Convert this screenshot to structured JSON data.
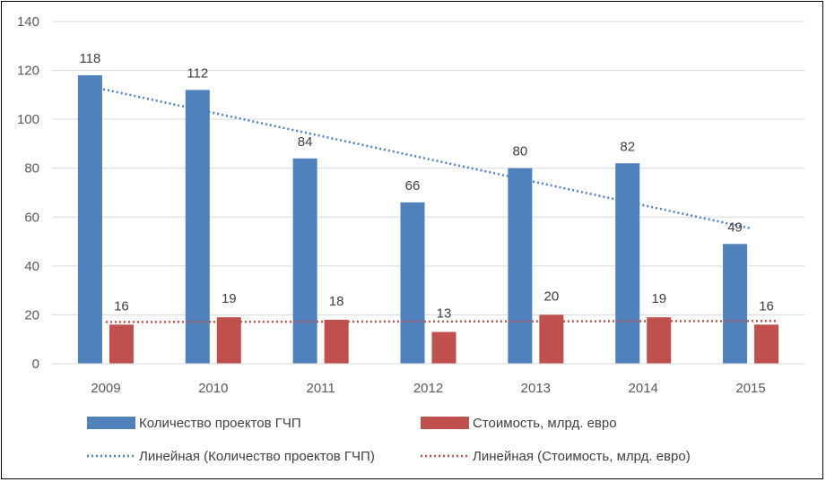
{
  "chart_data": {
    "type": "bar",
    "categories": [
      "2009",
      "2010",
      "2011",
      "2012",
      "2013",
      "2014",
      "2015"
    ],
    "series": [
      {
        "name": "Количество проектов ГЧП",
        "values": [
          118,
          112,
          84,
          66,
          80,
          82,
          49
        ],
        "color": "#4f81bd"
      },
      {
        "name": "Стоимость, млрд. евро",
        "values": [
          16,
          19,
          18,
          13,
          20,
          19,
          16
        ],
        "color": "#c0504d"
      }
    ],
    "trendlines": [
      {
        "name": "Линейная (Количество проектов ГЧП)",
        "type": "linear",
        "series_index": 0,
        "color": "#4f81bd",
        "style": "dotted"
      },
      {
        "name": "Линейная (Стоимость, млрд. евро)",
        "type": "linear",
        "series_index": 1,
        "color": "#c0504d",
        "style": "dotted"
      }
    ],
    "yticks": [
      "0",
      "20",
      "40",
      "60",
      "80",
      "100",
      "120",
      "140"
    ],
    "ylim": [
      0,
      140
    ],
    "grid": true,
    "legend_position": "bottom"
  }
}
